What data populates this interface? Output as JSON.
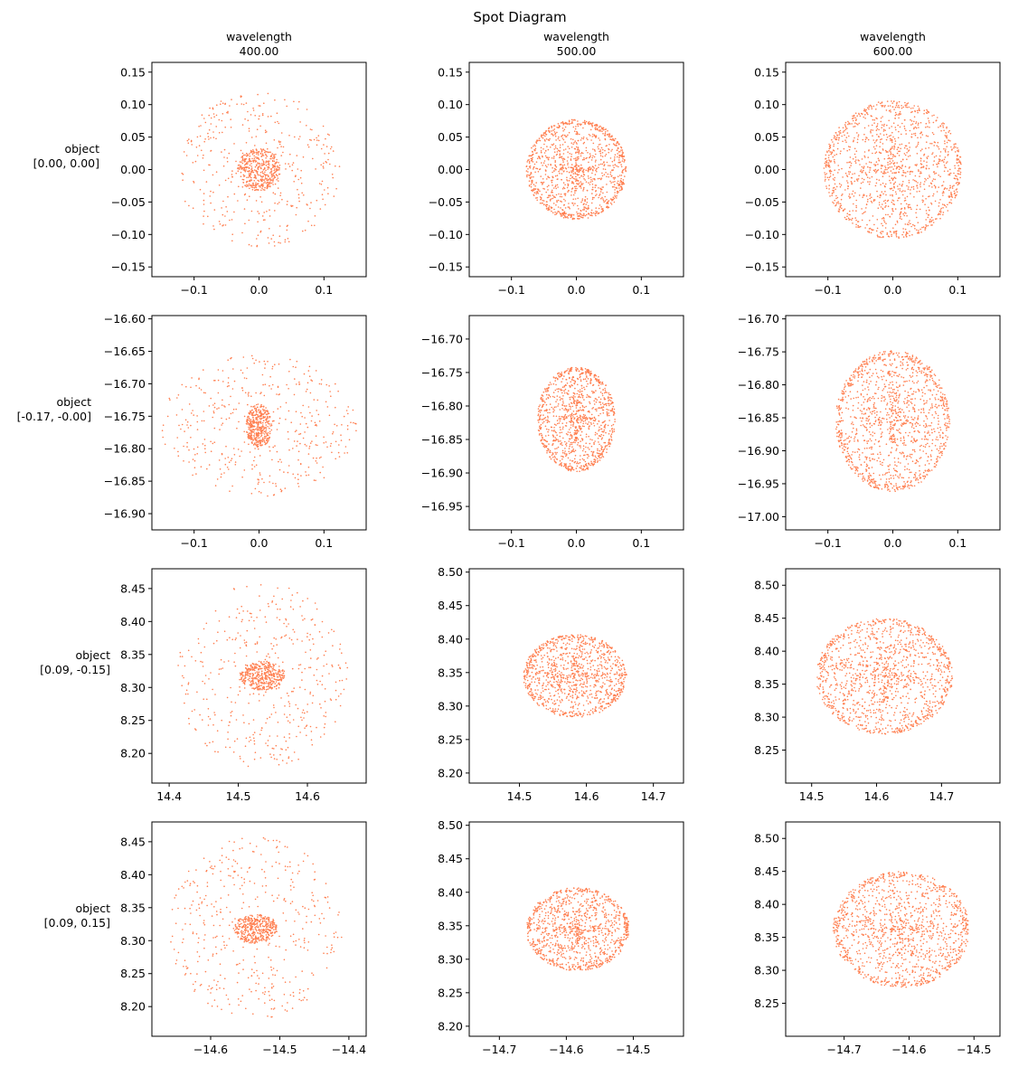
{
  "figure": {
    "title": "Spot Diagram",
    "marker_color": "#ff7f50",
    "columns": [
      "wavelength\n400.00",
      "wavelength\n500.00",
      "wavelength\n600.00"
    ],
    "rows": [
      "object\n[0.00, 0.00]",
      "object\n[-0.17, -0.00]",
      "object\n[0.09, -0.15]",
      "object\n[0.09, 0.15]"
    ]
  },
  "chart_data": [
    {
      "type": "scatter",
      "row": 0,
      "col": 0,
      "xlim": [
        -0.165,
        0.165
      ],
      "ylim": [
        -0.165,
        0.165
      ],
      "xticks": [
        -0.1,
        0.0,
        0.1
      ],
      "yticks": [
        -0.15,
        -0.1,
        -0.05,
        0.0,
        0.05,
        0.1,
        0.15
      ],
      "xtick_labels": [
        "−0.1",
        "0.0",
        "0.1"
      ],
      "ytick_labels": [
        "−0.15",
        "−0.10",
        "−0.05",
        "0.00",
        "0.05",
        "0.10",
        "0.15"
      ],
      "spot": {
        "cx": 0.0,
        "cy": 0.0,
        "core_rx": 0.033,
        "core_ry": 0.033,
        "halo_rx": 0.125,
        "halo_ry": 0.12,
        "core_n": 420,
        "halo_n": 380,
        "pattern": "halo"
      }
    },
    {
      "type": "scatter",
      "row": 0,
      "col": 1,
      "xlim": [
        -0.165,
        0.165
      ],
      "ylim": [
        -0.165,
        0.165
      ],
      "xticks": [
        -0.1,
        0.0,
        0.1
      ],
      "yticks": [
        -0.15,
        -0.1,
        -0.05,
        0.0,
        0.05,
        0.1,
        0.15
      ],
      "xtick_labels": [
        "−0.1",
        "0.0",
        "0.1"
      ],
      "ytick_labels": [
        "−0.15",
        "−0.10",
        "−0.05",
        "0.00",
        "0.05",
        "0.10",
        "0.15"
      ],
      "spot": {
        "cx": 0.0,
        "cy": 0.0,
        "rx": 0.077,
        "ry": 0.077,
        "n": 1100,
        "pattern": "disk"
      }
    },
    {
      "type": "scatter",
      "row": 0,
      "col": 2,
      "xlim": [
        -0.165,
        0.165
      ],
      "ylim": [
        -0.165,
        0.165
      ],
      "xticks": [
        -0.1,
        0.0,
        0.1
      ],
      "yticks": [
        -0.15,
        -0.1,
        -0.05,
        0.0,
        0.05,
        0.1,
        0.15
      ],
      "xtick_labels": [
        "−0.1",
        "0.0",
        "0.1"
      ],
      "ytick_labels": [
        "−0.15",
        "−0.10",
        "−0.05",
        "0.00",
        "0.05",
        "0.10",
        "0.15"
      ],
      "spot": {
        "cx": 0.0,
        "cy": 0.0,
        "rx": 0.106,
        "ry": 0.106,
        "n": 1200,
        "pattern": "disk"
      }
    },
    {
      "type": "scatter",
      "row": 1,
      "col": 0,
      "xlim": [
        -0.165,
        0.165
      ],
      "ylim": [
        -16.925,
        -16.595
      ],
      "xticks": [
        -0.1,
        0.0,
        0.1
      ],
      "yticks": [
        -16.9,
        -16.85,
        -16.8,
        -16.75,
        -16.7,
        -16.65,
        -16.6
      ],
      "xtick_labels": [
        "−0.1",
        "0.0",
        "0.1"
      ],
      "ytick_labels": [
        "−16.90",
        "−16.85",
        "−16.80",
        "−16.75",
        "−16.70",
        "−16.65",
        "−16.60"
      ],
      "spot": {
        "cx": 0.0,
        "cy": -16.765,
        "core_rx": 0.02,
        "core_ry": 0.033,
        "halo_rx": 0.15,
        "halo_ry": 0.11,
        "core_n": 380,
        "halo_n": 420,
        "pattern": "halo"
      }
    },
    {
      "type": "scatter",
      "row": 1,
      "col": 1,
      "xlim": [
        -0.165,
        0.165
      ],
      "ylim": [
        -16.985,
        -16.665
      ],
      "xticks": [
        -0.1,
        0.0,
        0.1
      ],
      "yticks": [
        -16.95,
        -16.9,
        -16.85,
        -16.8,
        -16.75,
        -16.7
      ],
      "xtick_labels": [
        "−0.1",
        "0.0",
        "0.1"
      ],
      "ytick_labels": [
        "−16.95",
        "−16.90",
        "−16.85",
        "−16.80",
        "−16.75",
        "−16.70"
      ],
      "spot": {
        "cx": 0.0,
        "cy": -16.82,
        "rx": 0.06,
        "ry": 0.078,
        "n": 1000,
        "pattern": "disk"
      }
    },
    {
      "type": "scatter",
      "row": 1,
      "col": 2,
      "xlim": [
        -0.165,
        0.165
      ],
      "ylim": [
        -17.02,
        -16.695
      ],
      "xticks": [
        -0.1,
        0.0,
        0.1
      ],
      "yticks": [
        -17.0,
        -16.95,
        -16.9,
        -16.85,
        -16.8,
        -16.75,
        -16.7
      ],
      "xtick_labels": [
        "−0.1",
        "0.0",
        "0.1"
      ],
      "ytick_labels": [
        "−17.00",
        "−16.95",
        "−16.90",
        "−16.85",
        "−16.80",
        "−16.75",
        "−16.70"
      ],
      "spot": {
        "cx": 0.0,
        "cy": -16.855,
        "rx": 0.088,
        "ry": 0.107,
        "n": 1200,
        "pattern": "disk"
      }
    },
    {
      "type": "scatter",
      "row": 2,
      "col": 0,
      "xlim": [
        14.375,
        14.685
      ],
      "ylim": [
        8.155,
        8.48
      ],
      "xticks": [
        14.4,
        14.5,
        14.6
      ],
      "yticks": [
        8.2,
        8.25,
        8.3,
        8.35,
        8.4,
        8.45
      ],
      "xtick_labels": [
        "14.4",
        "14.5",
        "14.6"
      ],
      "ytick_labels": [
        "8.20",
        "8.25",
        "8.30",
        "8.35",
        "8.40",
        "8.45"
      ],
      "spot": {
        "cx": 14.535,
        "cy": 8.318,
        "core_rx": 0.032,
        "core_ry": 0.022,
        "halo_rx": 0.125,
        "halo_ry": 0.14,
        "core_n": 380,
        "halo_n": 420,
        "pattern": "halo"
      }
    },
    {
      "type": "scatter",
      "row": 2,
      "col": 1,
      "xlim": [
        14.425,
        14.745
      ],
      "ylim": [
        8.185,
        8.505
      ],
      "xticks": [
        14.5,
        14.6,
        14.7
      ],
      "yticks": [
        8.2,
        8.25,
        8.3,
        8.35,
        8.4,
        8.45,
        8.5
      ],
      "xtick_labels": [
        "14.5",
        "14.6",
        "14.7"
      ],
      "ytick_labels": [
        "8.20",
        "8.25",
        "8.30",
        "8.35",
        "8.40",
        "8.45",
        "8.50"
      ],
      "spot": {
        "cx": 14.583,
        "cy": 8.345,
        "rx": 0.077,
        "ry": 0.062,
        "n": 1000,
        "pattern": "disk"
      }
    },
    {
      "type": "scatter",
      "row": 2,
      "col": 2,
      "xlim": [
        14.46,
        14.79
      ],
      "ylim": [
        8.2,
        8.525
      ],
      "xticks": [
        14.5,
        14.6,
        14.7
      ],
      "yticks": [
        8.25,
        8.3,
        8.35,
        8.4,
        8.45,
        8.5
      ],
      "xtick_labels": [
        "14.5",
        "14.6",
        "14.7"
      ],
      "ytick_labels": [
        "8.25",
        "8.30",
        "8.35",
        "8.40",
        "8.45",
        "8.50"
      ],
      "spot": {
        "cx": 14.612,
        "cy": 8.362,
        "rx": 0.105,
        "ry": 0.088,
        "n": 1200,
        "pattern": "disk"
      }
    },
    {
      "type": "scatter",
      "row": 3,
      "col": 0,
      "xlim": [
        -14.685,
        -14.375
      ],
      "ylim": [
        8.155,
        8.48
      ],
      "xticks": [
        -14.6,
        -14.5,
        -14.4
      ],
      "yticks": [
        8.2,
        8.25,
        8.3,
        8.35,
        8.4,
        8.45
      ],
      "xtick_labels": [
        "−14.6",
        "−14.5",
        "−14.4"
      ],
      "ytick_labels": [
        "8.20",
        "8.25",
        "8.30",
        "8.35",
        "8.40",
        "8.45"
      ],
      "spot": {
        "cx": -14.535,
        "cy": 8.318,
        "core_rx": 0.032,
        "core_ry": 0.022,
        "halo_rx": 0.125,
        "halo_ry": 0.14,
        "core_n": 380,
        "halo_n": 420,
        "pattern": "halo"
      }
    },
    {
      "type": "scatter",
      "row": 3,
      "col": 1,
      "xlim": [
        -14.745,
        -14.425
      ],
      "ylim": [
        8.185,
        8.505
      ],
      "xticks": [
        -14.7,
        -14.6,
        -14.5
      ],
      "yticks": [
        8.2,
        8.25,
        8.3,
        8.35,
        8.4,
        8.45,
        8.5
      ],
      "xtick_labels": [
        "−14.7",
        "−14.6",
        "−14.5"
      ],
      "ytick_labels": [
        "8.20",
        "8.25",
        "8.30",
        "8.35",
        "8.40",
        "8.45",
        "8.50"
      ],
      "spot": {
        "cx": -14.583,
        "cy": 8.345,
        "rx": 0.077,
        "ry": 0.062,
        "n": 1000,
        "pattern": "disk"
      }
    },
    {
      "type": "scatter",
      "row": 3,
      "col": 2,
      "xlim": [
        -14.79,
        -14.46
      ],
      "ylim": [
        8.2,
        8.525
      ],
      "xticks": [
        -14.7,
        -14.6,
        -14.5
      ],
      "yticks": [
        8.25,
        8.3,
        8.35,
        8.4,
        8.45,
        8.5
      ],
      "xtick_labels": [
        "−14.7",
        "−14.6",
        "−14.5"
      ],
      "ytick_labels": [
        "8.25",
        "8.30",
        "8.35",
        "8.40",
        "8.45",
        "8.50"
      ],
      "spot": {
        "cx": -14.612,
        "cy": 8.362,
        "rx": 0.105,
        "ry": 0.088,
        "n": 1200,
        "pattern": "disk"
      }
    }
  ]
}
